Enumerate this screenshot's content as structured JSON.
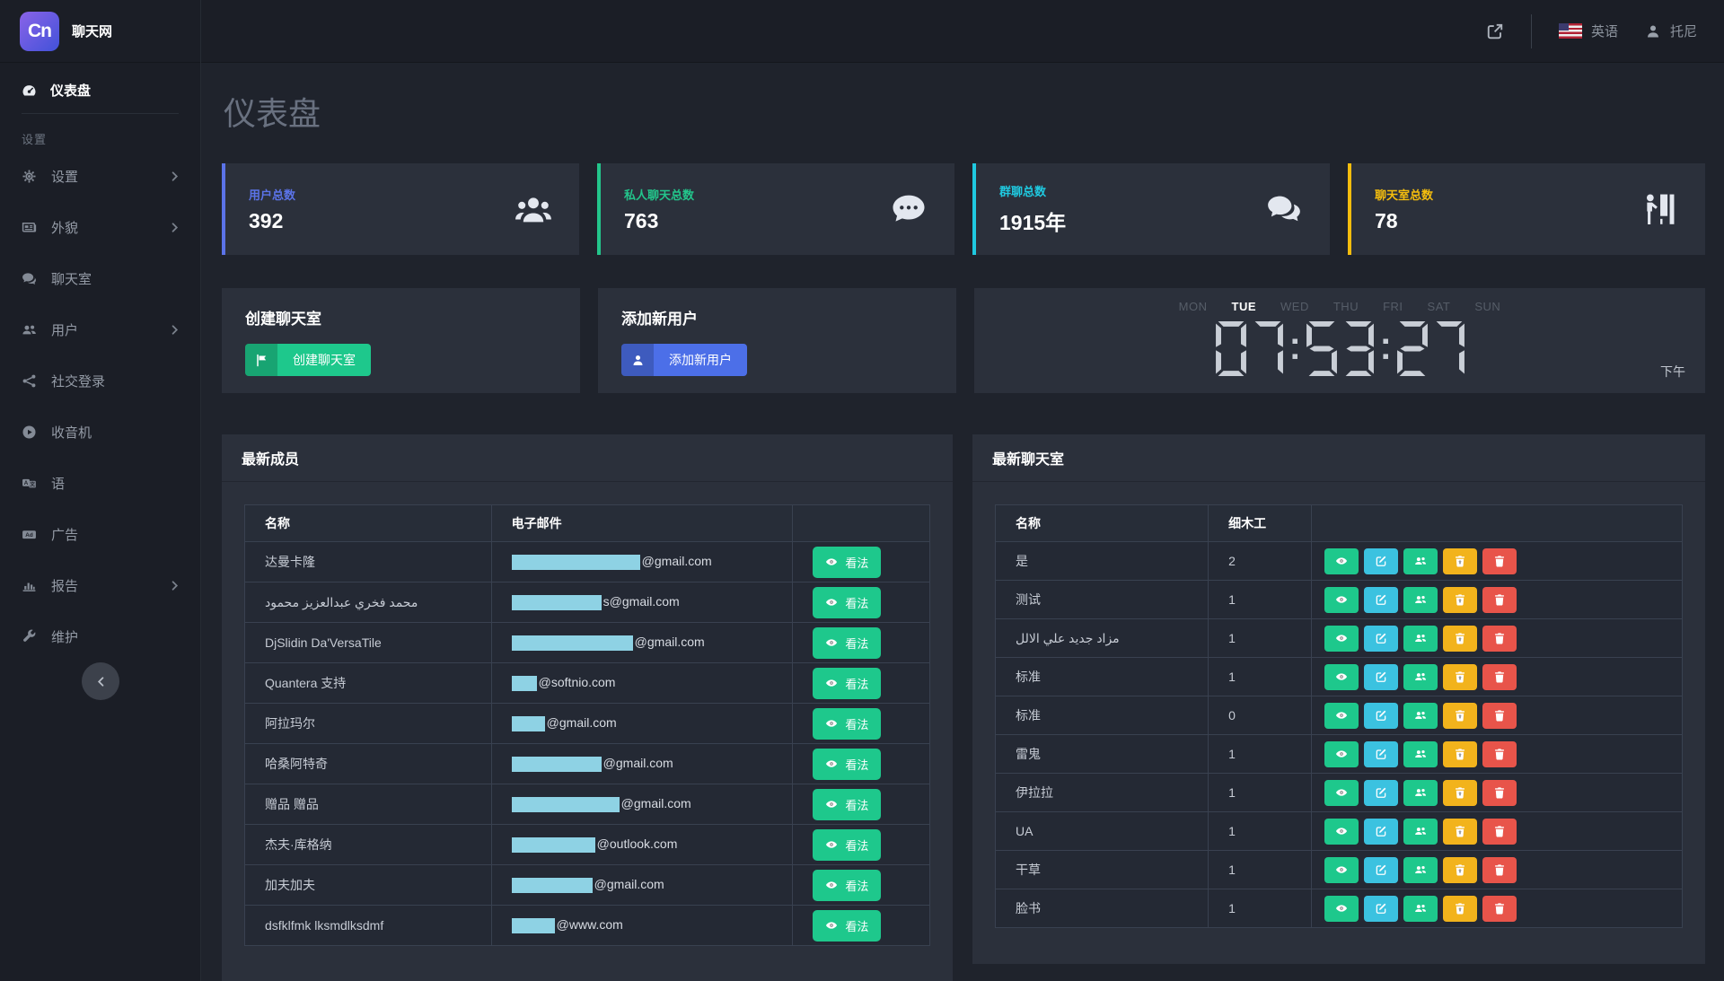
{
  "brand": {
    "logo": "Cn",
    "name": "聊天网"
  },
  "header": {
    "language": "英语",
    "user": "托尼"
  },
  "sidebar": {
    "dashboard": "仪表盘",
    "section": "设置",
    "items": [
      {
        "label": "设置",
        "icon": "gear",
        "chevron": true
      },
      {
        "label": "外貌",
        "icon": "newspaper",
        "chevron": true
      },
      {
        "label": "聊天室",
        "icon": "comments",
        "chevron": false
      },
      {
        "label": "用户",
        "icon": "users",
        "chevron": true
      },
      {
        "label": "社交登录",
        "icon": "share",
        "chevron": false
      },
      {
        "label": "收音机",
        "icon": "play",
        "chevron": false
      },
      {
        "label": "语",
        "icon": "language",
        "chevron": false
      },
      {
        "label": "广告",
        "icon": "ad",
        "chevron": false
      },
      {
        "label": "报告",
        "icon": "chart",
        "chevron": true
      },
      {
        "label": "维护",
        "icon": "wrench",
        "chevron": false
      }
    ]
  },
  "page_title": "仪表盘",
  "stats": [
    {
      "label": "用户总数",
      "value": "392",
      "color": "#5b73e8",
      "icon": "users-big"
    },
    {
      "label": "私人聊天总数",
      "value": "763",
      "color": "#23c58b",
      "icon": "comment-dots"
    },
    {
      "label": "群聊总数",
      "value": "1915年",
      "color": "#1fc9e0",
      "icon": "comments-big"
    },
    {
      "label": "聊天室总数",
      "value": "78",
      "color": "#f4bd0e",
      "icon": "person-booth"
    }
  ],
  "actions": [
    {
      "title": "创建聊天室",
      "label": "创建聊天室",
      "color": "#1ec88c",
      "icon": "flag",
      "name": "create-chatroom"
    },
    {
      "title": "添加新用户",
      "label": "添加新用户",
      "color": "#4c6fe8",
      "icon": "user",
      "name": "add-new-user"
    }
  ],
  "clock": {
    "days": [
      "MON",
      "TUE",
      "WED",
      "THU",
      "FRI",
      "SAT",
      "SUN"
    ],
    "active_day": "TUE",
    "time": "07:53:27",
    "meridiem": "下午"
  },
  "members": {
    "title": "最新成员",
    "columns": [
      "名称",
      "电子邮件",
      ""
    ],
    "view_label": "看法",
    "redact_color": "#8ed2e4",
    "rows": [
      {
        "name": "达曼卡隆",
        "email_visible": "@gmail.com",
        "redact_width": 143
      },
      {
        "name": "محمد فخري عبدالعزيز محمود",
        "email_visible": "s@gmail.com",
        "redact_width": 100
      },
      {
        "name": "DjSlidin Da'VersaTile",
        "email_visible": "@gmail.com",
        "redact_width": 135
      },
      {
        "name": "Quantera 支持",
        "email_visible": "@softnio.com",
        "redact_width": 28
      },
      {
        "name": "阿拉玛尔",
        "email_visible": "@gmail.com",
        "redact_width": 37
      },
      {
        "name": "哈桑阿特奇",
        "email_visible": "@gmail.com",
        "redact_width": 100
      },
      {
        "name": "赠品 赠品",
        "email_visible": "@gmail.com",
        "redact_width": 120
      },
      {
        "name": "杰夫·库格纳",
        "email_visible": "@outlook.com",
        "redact_width": 93
      },
      {
        "name": "加夫加夫",
        "email_visible": "@gmail.com",
        "redact_width": 90
      },
      {
        "name": "dsfklfmk lksmdlksdmf",
        "email_visible": "@www.com",
        "redact_width": 48
      }
    ]
  },
  "chatrooms": {
    "title": "最新聊天室",
    "columns": [
      "名称",
      "细木工",
      ""
    ],
    "row_actions": [
      {
        "name": "view",
        "icon": "eye",
        "color": "#1ec88c"
      },
      {
        "name": "edit",
        "icon": "pen",
        "color": "#3bc2e0"
      },
      {
        "name": "members",
        "icon": "users",
        "color": "#1ec88c"
      },
      {
        "name": "archive",
        "icon": "trash-restore",
        "color": "#f2b31c"
      },
      {
        "name": "delete",
        "icon": "trash",
        "color": "#e8544a"
      }
    ],
    "rows": [
      {
        "name": "是",
        "joiners": "2"
      },
      {
        "name": "测试",
        "joiners": "1"
      },
      {
        "name": "مزاد جديد علي الالل",
        "joiners": "1"
      },
      {
        "name": "标准",
        "joiners": "1"
      },
      {
        "name": "标准",
        "joiners": "0"
      },
      {
        "name": "雷鬼",
        "joiners": "1"
      },
      {
        "name": "伊拉拉",
        "joiners": "1"
      },
      {
        "name": "UA",
        "joiners": "1"
      },
      {
        "name": "干草",
        "joiners": "1"
      },
      {
        "name": "脸书",
        "joiners": "1"
      }
    ]
  }
}
